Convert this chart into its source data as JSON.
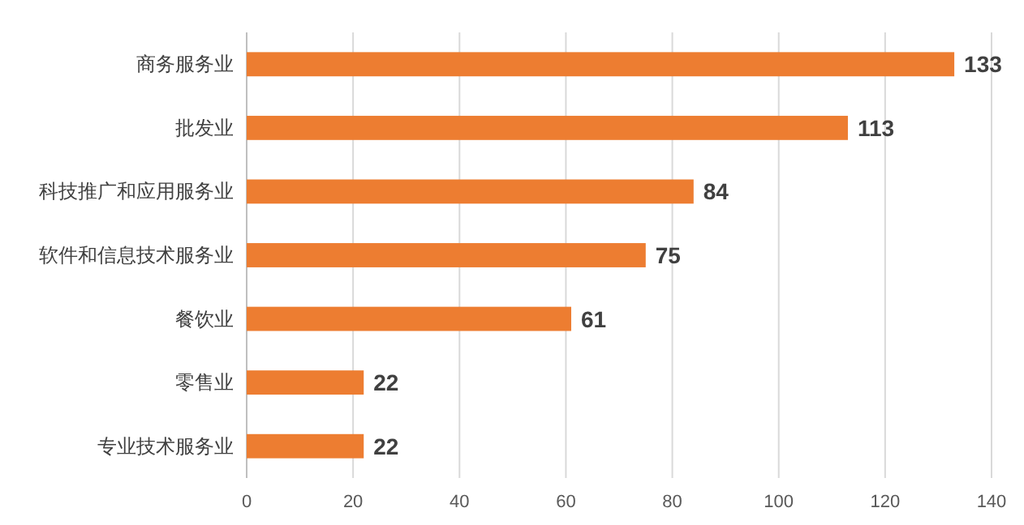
{
  "chart_data": {
    "type": "bar",
    "orientation": "horizontal",
    "categories": [
      "商务服务业",
      "批发业",
      "科技推广和应用服务业",
      "软件和信息技术服务业",
      "餐饮业",
      "零售业",
      "专业技术服务业"
    ],
    "values": [
      133,
      113,
      84,
      75,
      61,
      22,
      22
    ],
    "color": "#ed7d31",
    "xlim": [
      0,
      140
    ],
    "xticks": [
      0,
      20,
      40,
      60,
      80,
      100,
      120,
      140
    ],
    "grid": "x",
    "data_labels": true
  }
}
